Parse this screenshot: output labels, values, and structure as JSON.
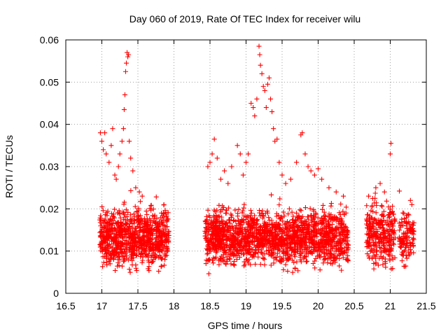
{
  "chart_data": {
    "type": "scatter",
    "title": "Day 060 of 2019, Rate Of TEC Index for receiver wilu",
    "xlabel": "GPS time / hours",
    "ylabel": "ROTI / TECUs",
    "xlim": [
      16.5,
      21.5
    ],
    "ylim": [
      0,
      0.06
    ],
    "xticks": [
      16.5,
      17,
      17.5,
      18,
      18.5,
      19,
      19.5,
      20,
      20.5,
      21,
      21.5
    ],
    "xtick_labels": [
      "16.5",
      "17",
      "17.5",
      "18",
      "18.5",
      "19",
      "19.5",
      "20",
      "20.5",
      "21",
      "21.5"
    ],
    "yticks": [
      0,
      0.01,
      0.02,
      0.03,
      0.04,
      0.05,
      0.06
    ],
    "ytick_labels": [
      "0",
      "0.01",
      "0.02",
      "0.03",
      "0.04",
      "0.05",
      "0.06"
    ],
    "grid": true,
    "marker": "+",
    "color": "#ff0000",
    "seed": 60,
    "segments": [
      {
        "x_start": 16.97,
        "x_end": 17.93,
        "n": 900,
        "base_min": 0.004,
        "base_max": 0.022,
        "spread_scale": 1.0
      },
      {
        "x_start": 18.43,
        "x_end": 20.42,
        "n": 1700,
        "base_min": 0.004,
        "base_max": 0.022,
        "spread_scale": 1.0
      },
      {
        "x_start": 20.67,
        "x_end": 21.07,
        "n": 300,
        "base_min": 0.004,
        "base_max": 0.024,
        "spread_scale": 1.0
      },
      {
        "x_start": 21.12,
        "x_end": 21.33,
        "n": 120,
        "base_min": 0.004,
        "base_max": 0.021,
        "spread_scale": 1.0
      }
    ],
    "outliers": [
      [
        16.98,
        0.038
      ],
      [
        17.0,
        0.036
      ],
      [
        17.02,
        0.034
      ],
      [
        17.04,
        0.038
      ],
      [
        17.06,
        0.033
      ],
      [
        17.1,
        0.031
      ],
      [
        17.13,
        0.035
      ],
      [
        17.15,
        0.039
      ],
      [
        17.18,
        0.028
      ],
      [
        17.2,
        0.027
      ],
      [
        17.23,
        0.03
      ],
      [
        17.25,
        0.033
      ],
      [
        17.28,
        0.036
      ],
      [
        17.3,
        0.039
      ],
      [
        17.31,
        0.0435
      ],
      [
        17.32,
        0.047
      ],
      [
        17.33,
        0.0525
      ],
      [
        17.34,
        0.0545
      ],
      [
        17.35,
        0.057
      ],
      [
        17.36,
        0.056
      ],
      [
        17.37,
        0.0565
      ],
      [
        17.38,
        0.036
      ],
      [
        17.4,
        0.032
      ],
      [
        17.43,
        0.029
      ],
      [
        17.47,
        0.025
      ],
      [
        17.52,
        0.024
      ],
      [
        17.56,
        0.023
      ],
      [
        18.47,
        0.03
      ],
      [
        18.5,
        0.031
      ],
      [
        18.53,
        0.033
      ],
      [
        18.56,
        0.0365
      ],
      [
        18.6,
        0.032
      ],
      [
        18.65,
        0.027
      ],
      [
        18.7,
        0.029
      ],
      [
        18.75,
        0.026
      ],
      [
        18.8,
        0.03
      ],
      [
        18.88,
        0.035
      ],
      [
        18.92,
        0.033
      ],
      [
        18.96,
        0.028
      ],
      [
        19.0,
        0.031
      ],
      [
        19.03,
        0.033
      ],
      [
        19.07,
        0.045
      ],
      [
        19.1,
        0.044
      ],
      [
        19.12,
        0.042
      ],
      [
        19.15,
        0.046
      ],
      [
        19.18,
        0.0585
      ],
      [
        19.19,
        0.0565
      ],
      [
        19.2,
        0.054
      ],
      [
        19.22,
        0.052
      ],
      [
        19.24,
        0.049
      ],
      [
        19.26,
        0.048
      ],
      [
        19.28,
        0.044
      ],
      [
        19.3,
        0.0495
      ],
      [
        19.32,
        0.051
      ],
      [
        19.34,
        0.046
      ],
      [
        19.36,
        0.043
      ],
      [
        19.38,
        0.039
      ],
      [
        19.4,
        0.036
      ],
      [
        19.43,
        0.0365
      ],
      [
        19.46,
        0.031
      ],
      [
        19.5,
        0.028
      ],
      [
        19.55,
        0.026
      ],
      [
        19.62,
        0.027
      ],
      [
        19.7,
        0.031
      ],
      [
        19.76,
        0.0375
      ],
      [
        19.78,
        0.038
      ],
      [
        19.82,
        0.033
      ],
      [
        19.86,
        0.03
      ],
      [
        19.9,
        0.029
      ],
      [
        19.95,
        0.028
      ],
      [
        20.0,
        0.0295
      ],
      [
        20.05,
        0.027
      ],
      [
        20.15,
        0.025
      ],
      [
        20.25,
        0.024
      ],
      [
        20.35,
        0.023
      ],
      [
        20.7,
        0.023
      ],
      [
        20.8,
        0.025
      ],
      [
        20.86,
        0.026
      ],
      [
        20.92,
        0.024
      ],
      [
        21.0,
        0.033
      ],
      [
        21.01,
        0.0355
      ],
      [
        21.28,
        0.022
      ],
      [
        21.3,
        0.021
      ]
    ]
  }
}
